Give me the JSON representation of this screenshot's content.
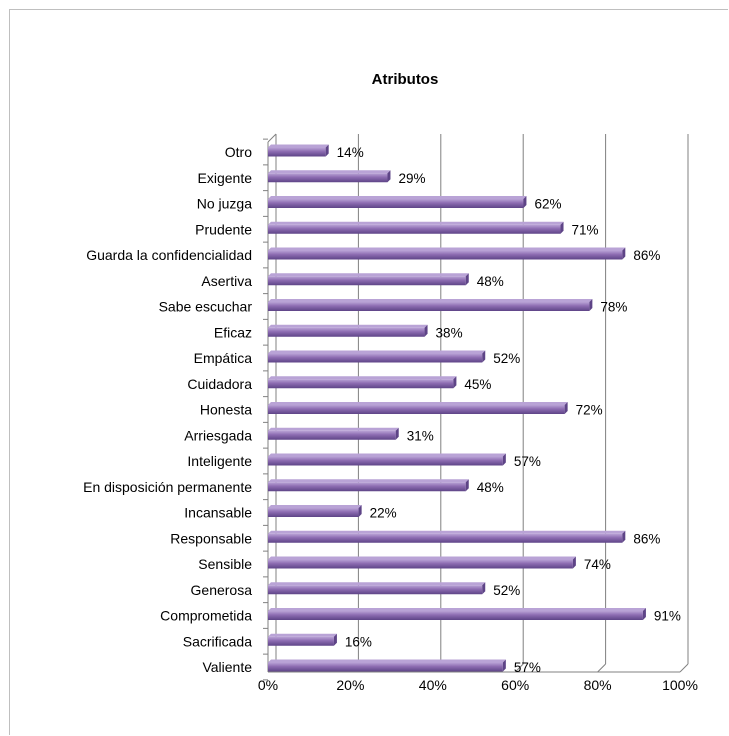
{
  "chart_data": {
    "type": "bar",
    "orientation": "horizontal",
    "title": "Atributos",
    "categories": [
      "Otro",
      "Exigente",
      "No juzga",
      "Prudente",
      "Guarda la confidencialidad",
      "Asertiva",
      "Sabe escuchar",
      "Eficaz",
      "Empática",
      "Cuidadora",
      "Honesta",
      "Arriesgada",
      "Inteligente",
      "En disposición permanente",
      "Incansable",
      "Responsable",
      "Sensible",
      "Generosa",
      "Comprometida",
      "Sacrificada",
      "Valiente"
    ],
    "values": [
      14,
      29,
      62,
      71,
      86,
      48,
      78,
      38,
      52,
      45,
      72,
      31,
      57,
      48,
      22,
      86,
      74,
      52,
      91,
      16,
      57
    ],
    "data_labels": [
      "14%",
      "29%",
      "62%",
      "71%",
      "86%",
      "48%",
      "78%",
      "38%",
      "52%",
      "45%",
      "72%",
      "31%",
      "57%",
      "48%",
      "22%",
      "86%",
      "74%",
      "52%",
      "91%",
      "16%",
      "57%"
    ],
    "x_ticks": [
      "0%",
      "20%",
      "40%",
      "60%",
      "80%",
      "100%"
    ],
    "xlim": [
      0,
      100
    ],
    "grid": true,
    "legend": "none",
    "colors": {
      "bar": "#8c6bb1",
      "bar_top": "#b9a3d6",
      "bar_bottom": "#5e4487",
      "grid": "#808080"
    }
  }
}
